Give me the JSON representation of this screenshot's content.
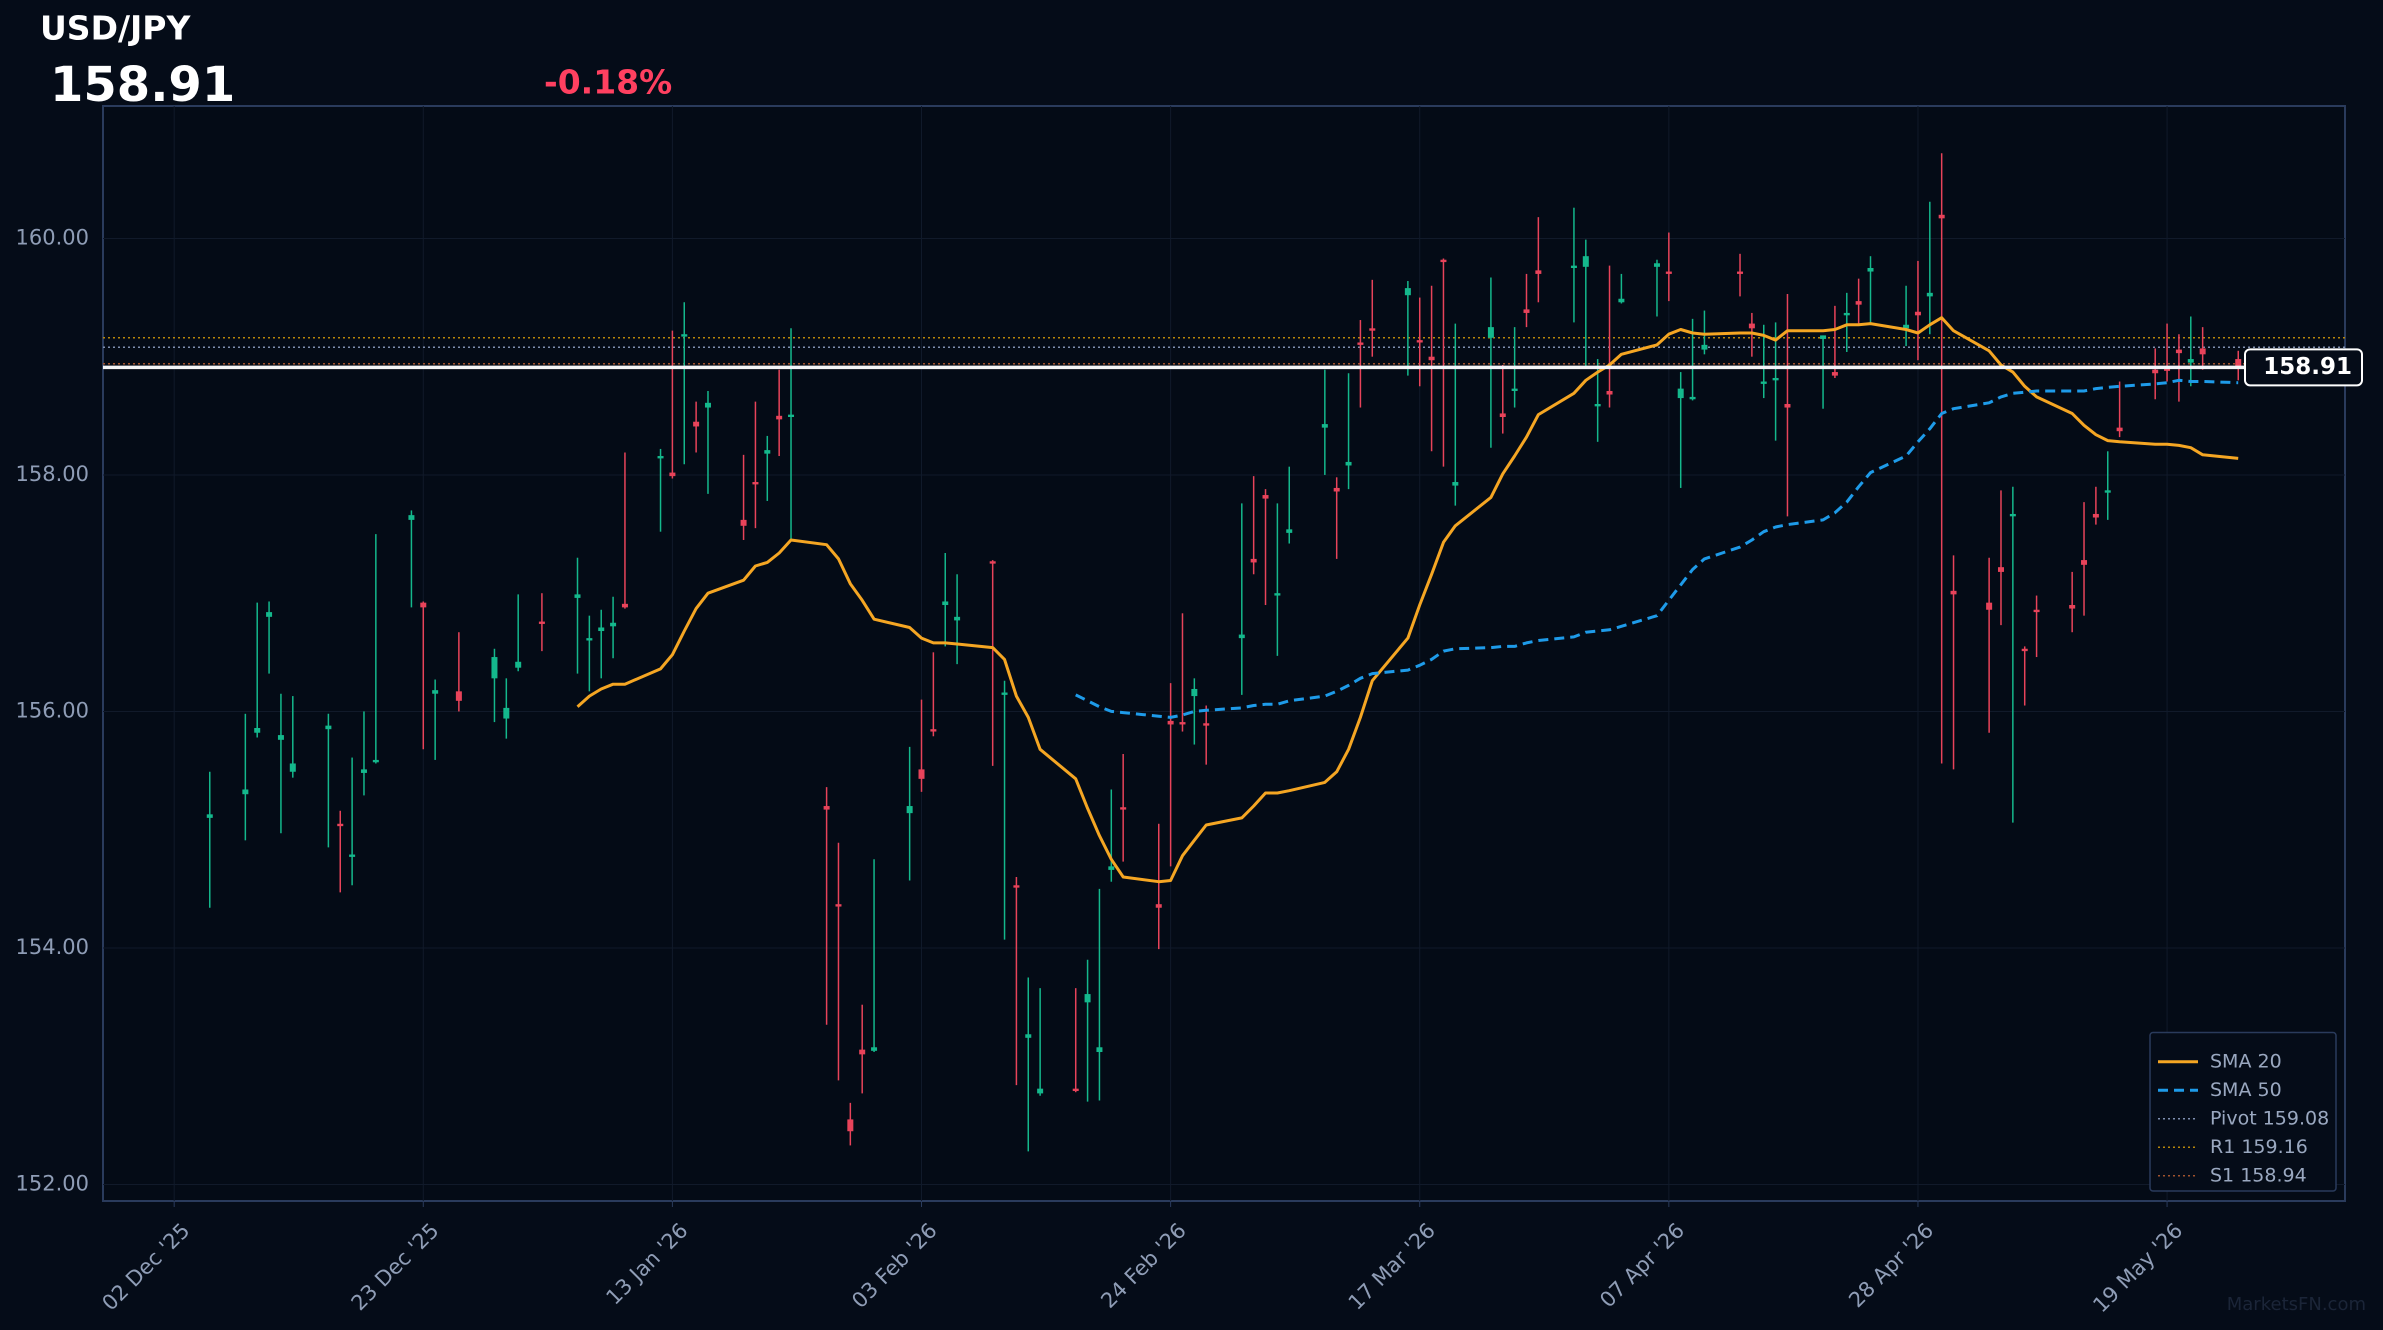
{
  "chart_data": {
    "type": "candlestick",
    "title": "USD/JPY",
    "last": 158.91,
    "change": "-0.18%",
    "watermark": "MarketsFN.com",
    "up_color": "#14b88c",
    "down_color": "#e8435a",
    "grid": true,
    "legend": "lower right",
    "xlim": [
      "2025-11-26",
      "2026-06-03"
    ],
    "xticks": [
      {
        "value": "2025-12-02",
        "label": "02 Dec '25"
      },
      {
        "value": "2025-12-23",
        "label": "23 Dec '25"
      },
      {
        "value": "2026-01-13",
        "label": "13 Jan '26"
      },
      {
        "value": "2026-02-03",
        "label": "03 Feb '26"
      },
      {
        "value": "2026-02-24",
        "label": "24 Feb '26"
      },
      {
        "value": "2026-03-17",
        "label": "17 Mar '26"
      },
      {
        "value": "2026-04-07",
        "label": "07 Apr '26"
      },
      {
        "value": "2026-04-28",
        "label": "28 Apr '26"
      },
      {
        "value": "2026-05-19",
        "label": "19 May '26"
      }
    ],
    "ylim": [
      151.86,
      161.12
    ],
    "yticks": [
      {
        "value": 152,
        "label": "152.00"
      },
      {
        "value": 154,
        "label": "154.00"
      },
      {
        "value": 156,
        "label": "156.00"
      },
      {
        "value": 158,
        "label": "158.00"
      },
      {
        "value": 160,
        "label": "160.00"
      }
    ],
    "x": [
      "2025-12-05",
      "2025-12-08",
      "2025-12-09",
      "2025-12-10",
      "2025-12-11",
      "2025-12-12",
      "2025-12-15",
      "2025-12-16",
      "2025-12-17",
      "2025-12-18",
      "2025-12-19",
      "2025-12-22",
      "2025-12-23",
      "2025-12-24",
      "2025-12-26",
      "2025-12-29",
      "2025-12-30",
      "2025-12-31",
      "2026-01-02",
      "2026-01-05",
      "2026-01-06",
      "2026-01-07",
      "2026-01-08",
      "2026-01-09",
      "2026-01-12",
      "2026-01-13",
      "2026-01-14",
      "2026-01-15",
      "2026-01-16",
      "2026-01-19",
      "2026-01-20",
      "2026-01-21",
      "2026-01-22",
      "2026-01-23",
      "2026-01-26",
      "2026-01-27",
      "2026-01-28",
      "2026-01-29",
      "2026-01-30",
      "2026-02-02",
      "2026-02-03",
      "2026-02-04",
      "2026-02-05",
      "2026-02-06",
      "2026-02-09",
      "2026-02-10",
      "2026-02-11",
      "2026-02-12",
      "2026-02-13",
      "2026-02-16",
      "2026-02-17",
      "2026-02-18",
      "2026-02-19",
      "2026-02-20",
      "2026-02-23",
      "2026-02-24",
      "2026-02-25",
      "2026-02-26",
      "2026-02-27",
      "2026-03-02",
      "2026-03-03",
      "2026-03-04",
      "2026-03-05",
      "2026-03-06",
      "2026-03-09",
      "2026-03-10",
      "2026-03-11",
      "2026-03-12",
      "2026-03-13",
      "2026-03-16",
      "2026-03-17",
      "2026-03-18",
      "2026-03-19",
      "2026-03-20",
      "2026-03-23",
      "2026-03-24",
      "2026-03-25",
      "2026-03-26",
      "2026-03-27",
      "2026-03-30",
      "2026-03-31",
      "2026-04-01",
      "2026-04-02",
      "2026-04-03",
      "2026-04-06",
      "2026-04-07",
      "2026-04-08",
      "2026-04-09",
      "2026-04-10",
      "2026-04-13",
      "2026-04-14",
      "2026-04-15",
      "2026-04-16",
      "2026-04-17",
      "2026-04-20",
      "2026-04-21",
      "2026-04-22",
      "2026-04-23",
      "2026-04-24",
      "2026-04-27",
      "2026-04-28",
      "2026-04-29",
      "2026-04-30",
      "2026-05-01",
      "2026-05-04",
      "2026-05-05",
      "2026-05-06",
      "2026-05-07",
      "2026-05-08",
      "2026-05-11",
      "2026-05-12",
      "2026-05-13",
      "2026-05-14",
      "2026-05-15",
      "2026-05-18",
      "2026-05-19",
      "2026-05-20",
      "2026-05-21",
      "2026-05-22",
      "2026-05-25"
    ],
    "open": [
      155.1,
      155.3,
      155.82,
      156.8,
      155.76,
      155.49,
      155.85,
      155.05,
      154.77,
      155.48,
      155.57,
      157.62,
      156.92,
      156.15,
      156.17,
      156.28,
      155.94,
      156.37,
      156.76,
      156.96,
      156.6,
      156.68,
      156.72,
      156.91,
      158.14,
      158.02,
      159.17,
      158.45,
      158.57,
      157.62,
      157.94,
      158.18,
      158.5,
      158.49,
      155.2,
      154.37,
      152.55,
      153.14,
      153.13,
      155.14,
      155.51,
      155.85,
      156.9,
      156.77,
      157.27,
      156.14,
      154.53,
      153.24,
      152.77,
      152.81,
      153.54,
      153.12,
      154.66,
      155.19,
      154.37,
      155.92,
      155.91,
      156.13,
      155.9,
      156.62,
      157.29,
      157.83,
      156.98,
      157.51,
      158.4,
      157.89,
      158.08,
      159.12,
      159.24,
      159.52,
      159.14,
      159.0,
      159.82,
      157.91,
      159.16,
      158.52,
      158.71,
      159.4,
      159.73,
      159.75,
      159.76,
      158.58,
      158.71,
      159.46,
      159.76,
      159.72,
      158.65,
      158.64,
      159.06,
      159.72,
      159.28,
      158.77,
      158.8,
      158.6,
      159.15,
      158.87,
      159.35,
      159.47,
      159.72,
      159.24,
      159.38,
      159.51,
      160.2,
      157.02,
      156.92,
      157.22,
      157.65,
      156.53,
      156.86,
      156.9,
      157.28,
      157.67,
      157.85,
      158.4,
      158.89,
      158.91,
      159.06,
      158.95,
      159.07,
      158.98
    ],
    "high": [
      155.49,
      155.98,
      156.92,
      156.93,
      156.15,
      156.13,
      155.98,
      155.16,
      155.61,
      156.0,
      157.5,
      157.7,
      156.93,
      156.27,
      156.67,
      156.53,
      156.28,
      156.99,
      157.0,
      157.3,
      156.81,
      156.86,
      156.97,
      158.19,
      158.22,
      159.22,
      159.46,
      158.62,
      158.71,
      158.17,
      158.62,
      158.33,
      158.89,
      159.24,
      155.36,
      154.89,
      152.69,
      153.52,
      154.75,
      155.7,
      156.1,
      156.5,
      157.34,
      157.16,
      157.28,
      156.26,
      154.6,
      153.75,
      153.66,
      153.66,
      153.9,
      154.5,
      155.34,
      155.64,
      155.05,
      156.24,
      156.83,
      156.28,
      156.05,
      157.76,
      157.99,
      157.88,
      157.76,
      158.07,
      158.89,
      157.98,
      158.86,
      159.31,
      159.65,
      159.64,
      159.5,
      159.6,
      159.83,
      159.28,
      159.67,
      158.93,
      159.25,
      159.7,
      160.18,
      160.26,
      159.99,
      158.98,
      159.77,
      159.7,
      159.82,
      160.05,
      158.87,
      159.32,
      159.39,
      159.87,
      159.37,
      159.27,
      159.29,
      159.53,
      159.18,
      159.43,
      159.54,
      159.66,
      159.85,
      159.6,
      159.81,
      160.31,
      160.72,
      157.32,
      157.3,
      157.87,
      157.9,
      156.55,
      156.98,
      157.18,
      157.77,
      157.9,
      158.2,
      158.79,
      159.07,
      159.28,
      159.19,
      159.34,
      159.25,
      159.05
    ],
    "low": [
      154.34,
      154.91,
      155.78,
      156.32,
      154.97,
      155.44,
      154.85,
      154.47,
      154.53,
      155.29,
      155.56,
      156.88,
      155.68,
      155.59,
      156.0,
      155.91,
      155.77,
      156.34,
      156.51,
      156.32,
      156.17,
      156.28,
      156.45,
      156.87,
      157.52,
      157.97,
      158.09,
      158.19,
      157.84,
      157.45,
      157.55,
      157.78,
      158.16,
      157.45,
      153.35,
      152.88,
      152.33,
      152.77,
      153.12,
      154.57,
      155.32,
      155.79,
      156.55,
      156.4,
      155.54,
      154.07,
      152.84,
      152.28,
      152.75,
      152.78,
      152.7,
      152.71,
      154.56,
      154.73,
      153.99,
      154.69,
      155.83,
      155.72,
      155.55,
      156.14,
      157.16,
      156.9,
      156.47,
      157.42,
      158.0,
      157.29,
      157.88,
      158.57,
      159.0,
      158.84,
      158.75,
      158.2,
      158.07,
      157.74,
      158.23,
      158.35,
      158.57,
      159.25,
      159.46,
      159.29,
      158.91,
      158.28,
      158.57,
      159.45,
      159.34,
      159.47,
      157.89,
      158.63,
      159.02,
      159.51,
      159.0,
      158.65,
      158.29,
      157.65,
      158.56,
      158.82,
      159.04,
      159.28,
      159.28,
      159.09,
      158.97,
      159.19,
      155.56,
      155.51,
      155.82,
      156.73,
      155.06,
      156.05,
      156.46,
      156.67,
      156.81,
      157.58,
      157.62,
      158.32,
      158.64,
      158.79,
      158.62,
      158.75,
      158.89,
      158.8
    ],
    "close": [
      155.13,
      155.34,
      155.86,
      156.84,
      155.8,
      155.56,
      155.88,
      155.03,
      154.79,
      155.51,
      155.59,
      157.66,
      156.88,
      156.18,
      156.09,
      156.46,
      156.03,
      156.42,
      156.74,
      156.99,
      156.62,
      156.71,
      156.75,
      156.88,
      158.16,
      157.99,
      159.19,
      158.41,
      158.61,
      157.57,
      157.92,
      158.21,
      158.47,
      158.51,
      155.17,
      154.35,
      152.45,
      153.1,
      153.16,
      155.2,
      155.43,
      155.83,
      156.93,
      156.8,
      157.25,
      156.16,
      154.51,
      153.27,
      152.81,
      152.79,
      153.61,
      153.16,
      154.69,
      155.17,
      154.34,
      155.89,
      155.89,
      156.19,
      155.88,
      156.65,
      157.26,
      157.8,
      157.0,
      157.54,
      158.43,
      157.86,
      158.11,
      159.1,
      159.22,
      159.58,
      159.12,
      158.97,
      159.8,
      157.94,
      159.25,
      158.49,
      158.73,
      159.37,
      159.7,
      159.77,
      159.85,
      158.6,
      158.68,
      159.49,
      159.79,
      159.7,
      158.73,
      158.66,
      159.1,
      159.7,
      159.24,
      158.79,
      158.82,
      158.57,
      159.18,
      158.84,
      159.37,
      159.44,
      159.75,
      159.27,
      159.35,
      159.54,
      160.17,
      156.99,
      156.86,
      157.18,
      157.67,
      156.51,
      156.84,
      156.87,
      157.24,
      157.64,
      157.87,
      158.37,
      158.86,
      158.88,
      159.03,
      158.98,
      159.02,
      158.91
    ],
    "series": [
      {
        "name": "SMA 20",
        "color": "#f5a623",
        "dash": false,
        "values": [
          null,
          null,
          null,
          null,
          null,
          null,
          null,
          null,
          null,
          null,
          null,
          null,
          null,
          null,
          null,
          null,
          null,
          null,
          null,
          156.04,
          156.13,
          156.19,
          156.23,
          156.23,
          156.36,
          156.48,
          156.68,
          156.87,
          157.0,
          157.11,
          157.23,
          157.26,
          157.34,
          157.45,
          157.41,
          157.29,
          157.08,
          156.94,
          156.78,
          156.71,
          156.62,
          156.58,
          156.58,
          156.57,
          156.54,
          156.44,
          156.13,
          155.95,
          155.68,
          155.43,
          155.18,
          154.95,
          154.75,
          154.6,
          154.56,
          154.57,
          154.78,
          154.91,
          155.04,
          155.1,
          155.2,
          155.31,
          155.31,
          155.33,
          155.4,
          155.49,
          155.68,
          155.95,
          156.26,
          156.62,
          156.9,
          157.16,
          157.43,
          157.57,
          157.81,
          158.01,
          158.16,
          158.32,
          158.51,
          158.69,
          158.8,
          158.87,
          158.93,
          159.02,
          159.1,
          159.19,
          159.23,
          159.2,
          159.19,
          159.2,
          159.2,
          159.18,
          159.14,
          159.22,
          159.22,
          159.23,
          159.27,
          159.27,
          159.28,
          159.23,
          159.2,
          159.27,
          159.33,
          159.22,
          159.05,
          158.93,
          158.87,
          158.75,
          158.66,
          158.52,
          158.42,
          158.34,
          158.29,
          158.28,
          158.26,
          158.26,
          158.25,
          158.23,
          158.17,
          158.14
        ]
      },
      {
        "name": "SMA 50",
        "color": "#1e9be9",
        "dash": true,
        "values": [
          null,
          null,
          null,
          null,
          null,
          null,
          null,
          null,
          null,
          null,
          null,
          null,
          null,
          null,
          null,
          null,
          null,
          null,
          null,
          null,
          null,
          null,
          null,
          null,
          null,
          null,
          null,
          null,
          null,
          null,
          null,
          null,
          null,
          null,
          null,
          null,
          null,
          null,
          null,
          null,
          null,
          null,
          null,
          null,
          null,
          null,
          null,
          null,
          null,
          156.14,
          156.09,
          156.04,
          156.0,
          155.99,
          155.96,
          155.95,
          155.97,
          156.0,
          156.01,
          156.03,
          156.05,
          156.06,
          156.06,
          156.09,
          156.13,
          156.17,
          156.22,
          156.28,
          156.32,
          156.35,
          156.39,
          156.44,
          156.51,
          156.53,
          156.54,
          156.55,
          156.55,
          156.58,
          156.6,
          156.63,
          156.67,
          156.68,
          156.69,
          156.72,
          156.81,
          156.94,
          157.07,
          157.2,
          157.29,
          157.39,
          157.45,
          157.52,
          157.56,
          157.58,
          157.62,
          157.68,
          157.77,
          157.9,
          158.02,
          158.16,
          158.28,
          158.39,
          158.52,
          158.56,
          158.61,
          158.66,
          158.69,
          158.7,
          158.71,
          158.71,
          158.71,
          158.73,
          158.74,
          158.75,
          158.77,
          158.78,
          158.8,
          158.79,
          158.79,
          158.78
        ]
      }
    ],
    "hlines": [
      {
        "name": "Pivot 159.08",
        "value": 159.08,
        "color": "#7f8fb0"
      },
      {
        "name": "R1 159.16",
        "value": 159.16,
        "color": "#b8860b"
      },
      {
        "name": "S1 158.94",
        "value": 158.94,
        "color": "#a0522d"
      }
    ]
  }
}
